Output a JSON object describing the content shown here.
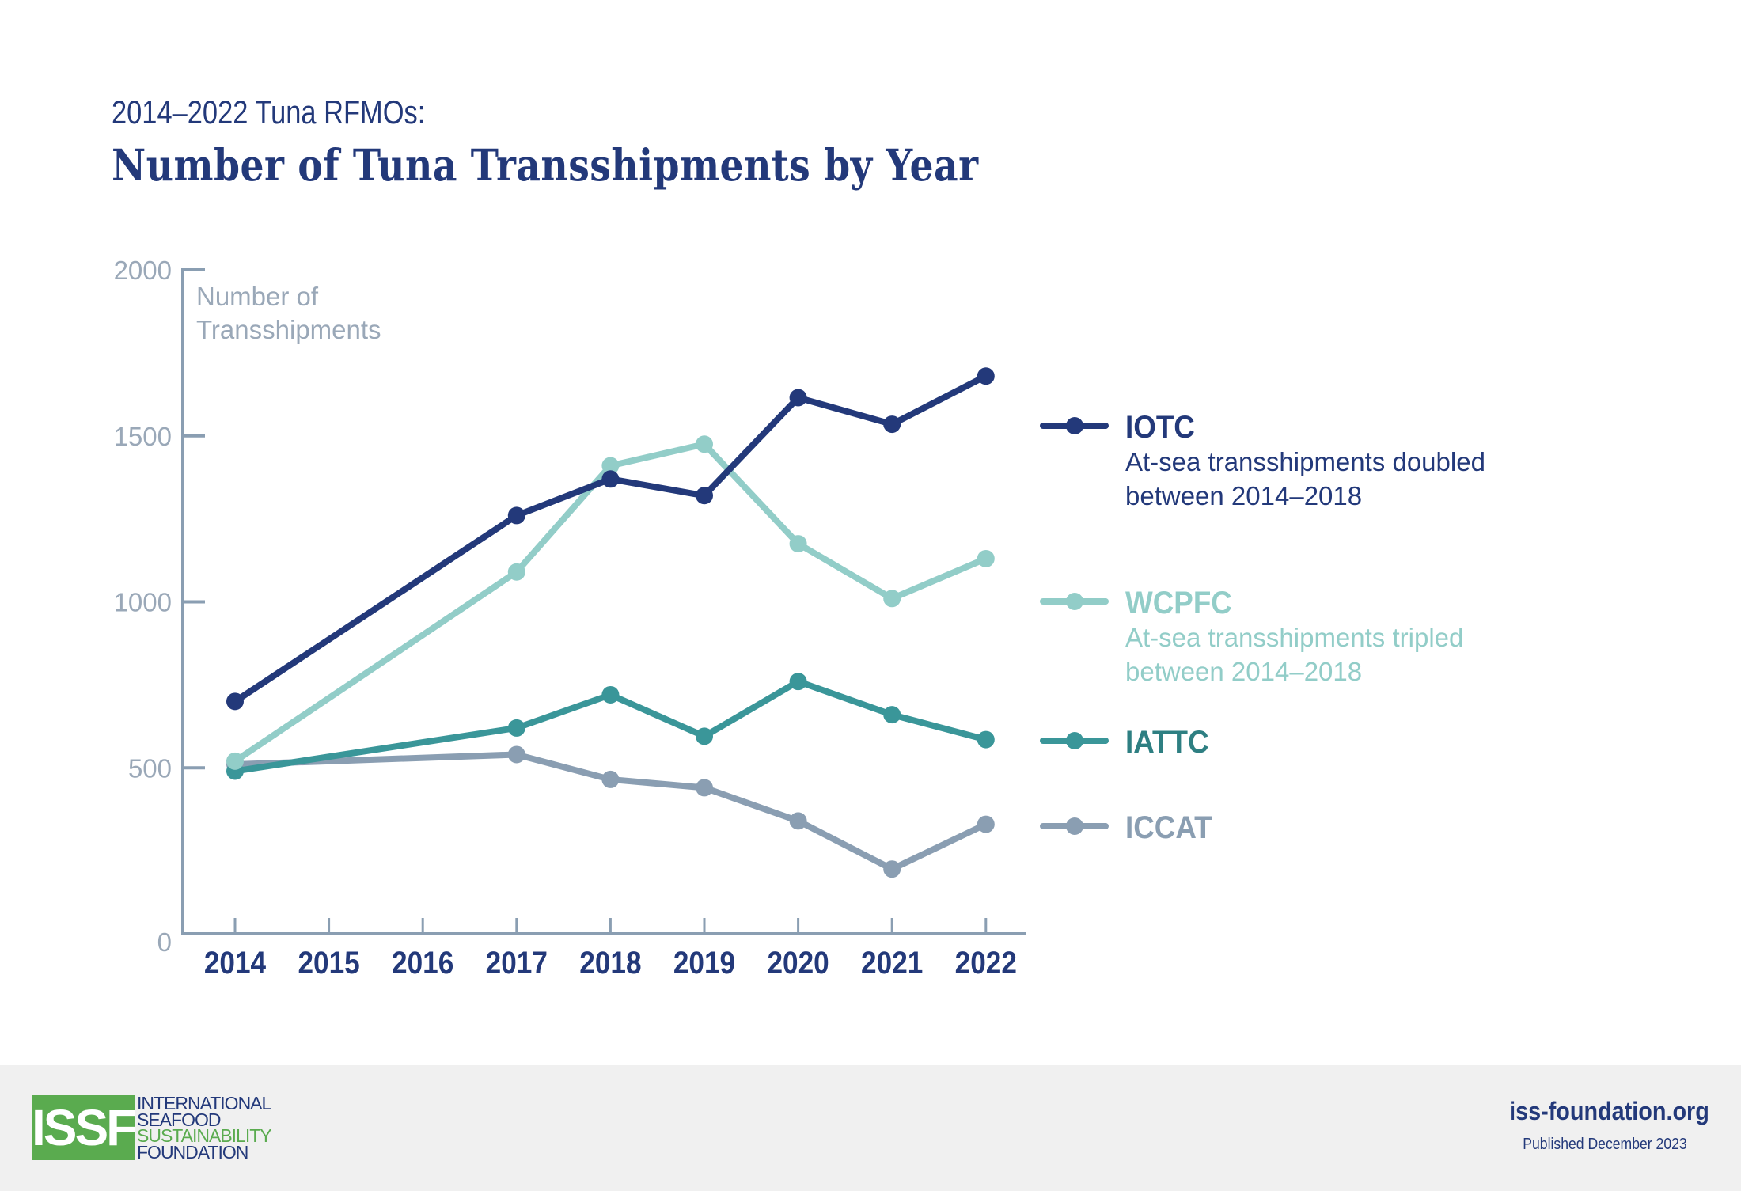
{
  "header": {
    "subtitle": "2014–2022 Tuna RFMOs:",
    "title": "Number of Tuna Transshipments by Year"
  },
  "chart_data": {
    "type": "line",
    "title": "Number of Tuna Transshipments by Year",
    "subtitle": "2014–2022 Tuna RFMOs:",
    "xlabel": "",
    "ylabel": "Number of Transshipments",
    "ylabel_lines": [
      "Number of",
      "Transshipments"
    ],
    "x_ticks": [
      "2014",
      "2015",
      "2016",
      "2017",
      "2018",
      "2019",
      "2020",
      "2021",
      "2022"
    ],
    "y_ticks": [
      "0",
      "500",
      "1000",
      "1500",
      "2000"
    ],
    "xlim": [
      2014,
      2022
    ],
    "ylim": [
      0,
      2000
    ],
    "grid": false,
    "legend_position": "right",
    "series": [
      {
        "name": "IOTC",
        "note_lines": [
          "At-sea transshipments doubled",
          "between 2014–2018"
        ],
        "color": "#23397a",
        "label_color": "#23397a",
        "x": [
          2014,
          2017,
          2018,
          2019,
          2020,
          2021,
          2022
        ],
        "values": [
          700,
          1260,
          1370,
          1320,
          1615,
          1535,
          1680
        ]
      },
      {
        "name": "WCPFC",
        "note_lines": [
          "At-sea transshipments tripled",
          "between 2014–2018"
        ],
        "color": "#92cdc8",
        "label_color": "#92cdc8",
        "x": [
          2014,
          2017,
          2018,
          2019,
          2020,
          2021,
          2022
        ],
        "values": [
          520,
          1090,
          1410,
          1475,
          1175,
          1010,
          1130
        ]
      },
      {
        "name": "IATTC",
        "note_lines": [],
        "color": "#3a9699",
        "label_color": "#2e7f82",
        "x": [
          2014,
          2017,
          2018,
          2019,
          2020,
          2021,
          2022
        ],
        "values": [
          490,
          620,
          720,
          595,
          760,
          660,
          585
        ]
      },
      {
        "name": "ICCAT",
        "note_lines": [],
        "color": "#8a9eb2",
        "label_color": "#8a9eb2",
        "x": [
          2014,
          2017,
          2018,
          2019,
          2020,
          2021,
          2022
        ],
        "values": [
          510,
          540,
          465,
          440,
          340,
          195,
          330
        ]
      }
    ],
    "colors": {
      "axis": "#8a9eb2",
      "x_tick_label": "#23397a",
      "y_tick_label": "#9aa8b8"
    }
  },
  "footer": {
    "logo_mark": "ISSF",
    "logo_lines": [
      "INTERNATIONAL",
      "SEAFOOD",
      "SUSTAINABILITY",
      "FOUNDATION"
    ],
    "website": "iss-foundation.org",
    "published": "Published December 2023"
  }
}
